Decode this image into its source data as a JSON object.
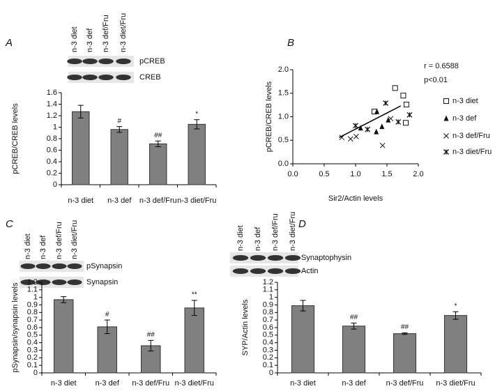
{
  "chart_data": [
    {
      "type": "bar",
      "panel": "A",
      "ylabel": "pCREB/CREB levels",
      "blot": {
        "lanes": [
          "n-3 diet",
          "n-3 def",
          "n-3 def/Fru",
          "n-3 diet/Fru"
        ],
        "bands": [
          "pCREB",
          "CREB"
        ]
      },
      "categories": [
        "n-3 diet",
        "n-3 def",
        "n-3 def/Fru",
        "n-3 diet/Fru"
      ],
      "values": [
        1.27,
        0.96,
        0.71,
        1.05
      ],
      "errors": [
        0.11,
        0.05,
        0.05,
        0.08
      ],
      "sig_labels": [
        null,
        "#",
        "##",
        "*"
      ],
      "color": "#808080",
      "ylim": [
        0,
        1.6
      ],
      "yticks": [
        0,
        0.2,
        0.4,
        0.6,
        0.8,
        1,
        1.2,
        1.4,
        1.6
      ]
    },
    {
      "type": "scatter",
      "panel": "B",
      "xlabel": "Sir2/Actin levels",
      "ylabel": "pCREB/CREB levels",
      "annotations": [
        "r = 0.6588",
        "p<0.01"
      ],
      "xlim": [
        0,
        2
      ],
      "xticks": [
        {
          "value": 0,
          "label": "0.0"
        },
        {
          "value": 0.5,
          "label": "0.5"
        },
        {
          "value": 1,
          "label": "1.0"
        },
        {
          "value": 1.5,
          "label": "1.5"
        },
        {
          "value": 2,
          "label": "2.0"
        }
      ],
      "ylim": [
        0,
        2
      ],
      "yticks": [
        {
          "value": 0,
          "label": "0.0"
        },
        {
          "value": 0.5,
          "label": "0.5"
        },
        {
          "value": 1,
          "label": "1.0"
        },
        {
          "value": 1.5,
          "label": "1.5"
        },
        {
          "value": 2,
          "label": "2.0"
        }
      ],
      "trendline": {
        "x": [
          0.74,
          1.72
        ],
        "y": [
          0.56,
          1.23
        ]
      },
      "series": [
        {
          "name": "n-3 diet",
          "marker": "square-open",
          "color": "#111111",
          "x": [
            1.63,
            1.76,
            1.81,
            1.8,
            1.3
          ],
          "y": [
            1.61,
            1.45,
            1.26,
            0.87,
            1.11
          ]
        },
        {
          "name": "n-3 def",
          "marker": "triangle",
          "color": "#111111",
          "x": [
            1.34,
            1.33,
            1.42,
            1.52,
            1.08
          ],
          "y": [
            1.11,
            0.68,
            0.79,
            0.93,
            0.76
          ]
        },
        {
          "name": "n-3 def/Fru",
          "marker": "x",
          "color": "#111111",
          "x": [
            0.78,
            0.92,
            1.01,
            1.43,
            1.56
          ],
          "y": [
            0.56,
            0.53,
            0.58,
            0.39,
            0.96
          ]
        },
        {
          "name": "n-3 diet/Fru",
          "marker": "star",
          "color": "#111111",
          "x": [
            1.0,
            1.19,
            1.48,
            1.68,
            1.86
          ],
          "y": [
            0.81,
            0.73,
            1.29,
            0.89,
            1.04
          ]
        }
      ]
    },
    {
      "type": "bar",
      "panel": "C",
      "ylabel": "pSynapsin/synapsin levels",
      "blot": {
        "lanes": [
          "n-3 diet",
          "n-3 def",
          "n-3 def/Fru",
          "n-3 diet/Fru"
        ],
        "bands": [
          "pSynapsin",
          "Synapsin"
        ]
      },
      "categories": [
        "n-3 diet",
        "n-3 def",
        "n-3 def/Fru",
        "n-3 diet/Fru"
      ],
      "values": [
        0.97,
        0.61,
        0.36,
        0.86
      ],
      "errors": [
        0.04,
        0.09,
        0.07,
        0.1
      ],
      "sig_labels": [
        null,
        "#",
        "##",
        "**"
      ],
      "color": "#808080",
      "ylim": [
        0,
        1.2
      ],
      "yticks": [
        0,
        0.1,
        0.2,
        0.3,
        0.4,
        0.5,
        0.6,
        0.7,
        0.8,
        0.9,
        1,
        1.1,
        1.2
      ]
    },
    {
      "type": "bar",
      "panel": "D",
      "ylabel": "SYP/Actin levels",
      "blot": {
        "lanes": [
          "n-3 diet",
          "n-3 def",
          "n-3 def/Fru",
          "n-3 diet/Fru"
        ],
        "bands": [
          "Synaptophysin",
          "Actin"
        ]
      },
      "categories": [
        "n-3 diet",
        "n-3 def",
        "n-3 def/Fru",
        "n-3 diet/Fru"
      ],
      "values": [
        0.89,
        0.62,
        0.52,
        0.76
      ],
      "errors": [
        0.07,
        0.04,
        0.01,
        0.05
      ],
      "sig_labels": [
        null,
        "##",
        "##",
        "*"
      ],
      "color": "#808080",
      "ylim": [
        0,
        1.2
      ],
      "yticks": [
        0,
        0.1,
        0.2,
        0.3,
        0.4,
        0.5,
        0.6,
        0.7,
        0.8,
        0.9,
        1,
        1.1,
        1.2
      ]
    }
  ]
}
